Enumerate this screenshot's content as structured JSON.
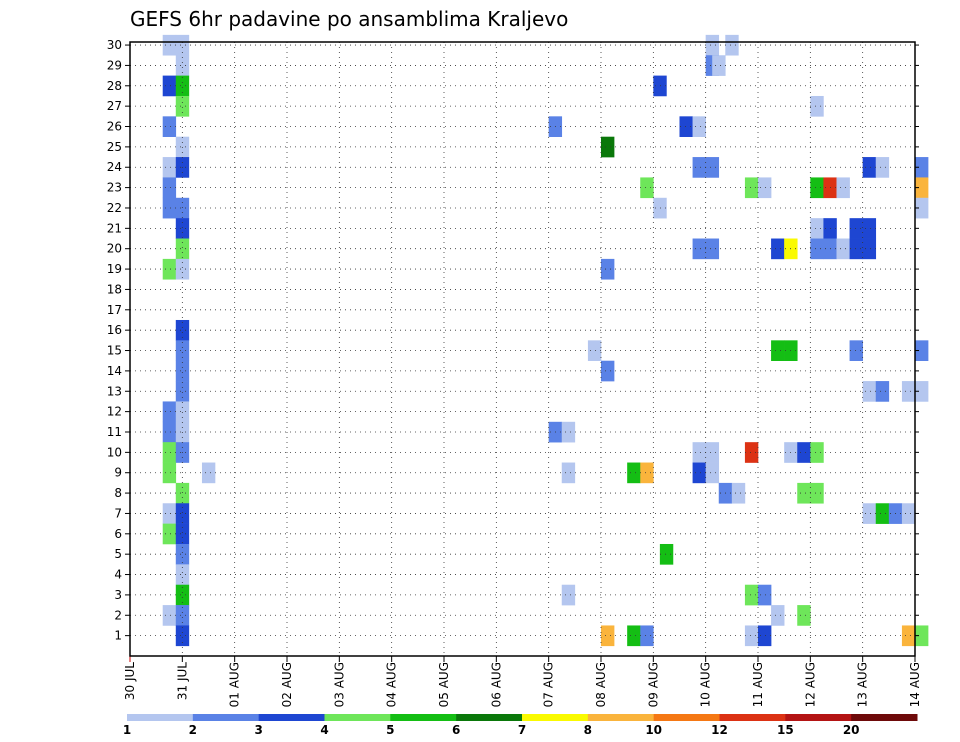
{
  "chart_data": {
    "type": "heatmap",
    "title": "GEFS 6hr padavine po ansamblima Kraljevo",
    "y_tick_labels": [
      "1",
      "2",
      "3",
      "4",
      "5",
      "6",
      "7",
      "8",
      "9",
      "10",
      "11",
      "12",
      "13",
      "14",
      "15",
      "16",
      "17",
      "18",
      "19",
      "20",
      "21",
      "22",
      "23",
      "24",
      "25",
      "26",
      "27",
      "28",
      "29",
      "30"
    ],
    "x_tick_labels": [
      "30 JUL",
      "31 JUL",
      "01 AUG",
      "02 AUG",
      "03 AUG",
      "04 AUG",
      "05 AUG",
      "06 AUG",
      "07 AUG",
      "08 AUG",
      "09 AUG",
      "10 AUG",
      "11 AUG",
      "12 AUG",
      "13 AUG",
      "14 AUG"
    ],
    "x_tick_days": [
      0,
      1,
      2,
      3,
      4,
      5,
      6,
      7,
      8,
      9,
      10,
      11,
      12,
      13,
      14,
      15
    ],
    "grid": true,
    "colorbar": {
      "position": "bottom",
      "labels": [
        "1",
        "2",
        "3",
        "4",
        "5",
        "6",
        "7",
        "8",
        "10",
        "12",
        "15",
        "20"
      ],
      "colors": [
        "#b4c6ef",
        "#5a82e6",
        "#1e46d2",
        "#6ee65a",
        "#14be14",
        "#0a780a",
        "#fafa00",
        "#fab43c",
        "#f57814",
        "#dc3214",
        "#b41414",
        "#6e0a0a"
      ]
    },
    "cells": [
      {
        "member": 30,
        "day": 0.625,
        "level": 1
      },
      {
        "member": 30,
        "day": 0.875,
        "level": 1
      },
      {
        "member": 30,
        "day": 11.0,
        "level": 1
      },
      {
        "member": 30,
        "day": 11.375,
        "level": 1
      },
      {
        "member": 29,
        "day": 0.875,
        "level": 1
      },
      {
        "member": 29,
        "day": 11.0,
        "level": 2
      },
      {
        "member": 29,
        "day": 11.125,
        "level": 1
      },
      {
        "member": 28,
        "day": 0.625,
        "level": 3
      },
      {
        "member": 28,
        "day": 0.875,
        "level": 5
      },
      {
        "member": 28,
        "day": 10.0,
        "level": 3
      },
      {
        "member": 27,
        "day": 0.875,
        "level": 4
      },
      {
        "member": 27,
        "day": 13.0,
        "level": 1
      },
      {
        "member": 26,
        "day": 0.625,
        "level": 2
      },
      {
        "member": 26,
        "day": 8.0,
        "level": 2
      },
      {
        "member": 26,
        "day": 10.5,
        "level": 3
      },
      {
        "member": 26,
        "day": 10.75,
        "level": 1
      },
      {
        "member": 25,
        "day": 0.875,
        "level": 1
      },
      {
        "member": 25,
        "day": 9.0,
        "level": 6
      },
      {
        "member": 24,
        "day": 0.625,
        "level": 1
      },
      {
        "member": 24,
        "day": 0.875,
        "level": 3
      },
      {
        "member": 24,
        "day": 10.75,
        "level": 2
      },
      {
        "member": 24,
        "day": 11.0,
        "level": 2
      },
      {
        "member": 24,
        "day": 14.0,
        "level": 3
      },
      {
        "member": 24,
        "day": 14.25,
        "level": 1
      },
      {
        "member": 24,
        "day": 15.0,
        "level": 2
      },
      {
        "member": 23,
        "day": 0.625,
        "level": 2
      },
      {
        "member": 23,
        "day": 9.75,
        "level": 4
      },
      {
        "member": 23,
        "day": 11.75,
        "level": 4
      },
      {
        "member": 23,
        "day": 12.0,
        "level": 1
      },
      {
        "member": 23,
        "day": 13.0,
        "level": 5
      },
      {
        "member": 23,
        "day": 13.25,
        "level": 10
      },
      {
        "member": 23,
        "day": 13.5,
        "level": 1
      },
      {
        "member": 23,
        "day": 15.0,
        "level": 8
      },
      {
        "member": 22,
        "day": 0.625,
        "level": 2
      },
      {
        "member": 22,
        "day": 0.875,
        "level": 2
      },
      {
        "member": 22,
        "day": 10.0,
        "level": 1
      },
      {
        "member": 22,
        "day": 15.0,
        "level": 1
      },
      {
        "member": 21,
        "day": 0.875,
        "level": 3
      },
      {
        "member": 21,
        "day": 13.0,
        "level": 1
      },
      {
        "member": 21,
        "day": 13.25,
        "level": 3
      },
      {
        "member": 21,
        "day": 13.75,
        "level": 3
      },
      {
        "member": 21,
        "day": 14.0,
        "level": 3
      },
      {
        "member": 20,
        "day": 0.875,
        "level": 4
      },
      {
        "member": 20,
        "day": 10.75,
        "level": 2
      },
      {
        "member": 20,
        "day": 11.0,
        "level": 2
      },
      {
        "member": 20,
        "day": 12.25,
        "level": 3
      },
      {
        "member": 20,
        "day": 12.5,
        "level": 7
      },
      {
        "member": 20,
        "day": 13.0,
        "level": 2
      },
      {
        "member": 20,
        "day": 13.25,
        "level": 2
      },
      {
        "member": 20,
        "day": 13.5,
        "level": 1
      },
      {
        "member": 20,
        "day": 13.75,
        "level": 3
      },
      {
        "member": 20,
        "day": 14.0,
        "level": 3
      },
      {
        "member": 19,
        "day": 0.625,
        "level": 4
      },
      {
        "member": 19,
        "day": 0.875,
        "level": 1
      },
      {
        "member": 19,
        "day": 9.0,
        "level": 2
      },
      {
        "member": 16,
        "day": 0.875,
        "level": 3
      },
      {
        "member": 15,
        "day": 0.875,
        "level": 2
      },
      {
        "member": 15,
        "day": 8.75,
        "level": 1
      },
      {
        "member": 15,
        "day": 12.25,
        "level": 5
      },
      {
        "member": 15,
        "day": 12.5,
        "level": 5
      },
      {
        "member": 15,
        "day": 13.75,
        "level": 2
      },
      {
        "member": 15,
        "day": 15.0,
        "level": 2
      },
      {
        "member": 14,
        "day": 0.875,
        "level": 2
      },
      {
        "member": 14,
        "day": 9.0,
        "level": 2
      },
      {
        "member": 13,
        "day": 0.875,
        "level": 2
      },
      {
        "member": 13,
        "day": 14.0,
        "level": 1
      },
      {
        "member": 13,
        "day": 14.25,
        "level": 2
      },
      {
        "member": 13,
        "day": 14.75,
        "level": 1
      },
      {
        "member": 13,
        "day": 15.0,
        "level": 1
      },
      {
        "member": 12,
        "day": 0.625,
        "level": 2
      },
      {
        "member": 12,
        "day": 0.875,
        "level": 1
      },
      {
        "member": 11,
        "day": 0.625,
        "level": 2
      },
      {
        "member": 11,
        "day": 0.875,
        "level": 1
      },
      {
        "member": 11,
        "day": 8.0,
        "level": 2
      },
      {
        "member": 11,
        "day": 8.25,
        "level": 1
      },
      {
        "member": 10,
        "day": 0.625,
        "level": 4
      },
      {
        "member": 10,
        "day": 0.875,
        "level": 2
      },
      {
        "member": 10,
        "day": 10.75,
        "level": 1
      },
      {
        "member": 10,
        "day": 11.0,
        "level": 1
      },
      {
        "member": 10,
        "day": 11.75,
        "level": 10
      },
      {
        "member": 10,
        "day": 12.5,
        "level": 1
      },
      {
        "member": 10,
        "day": 12.75,
        "level": 3
      },
      {
        "member": 10,
        "day": 13.0,
        "level": 4
      },
      {
        "member": 9,
        "day": 0.625,
        "level": 4
      },
      {
        "member": 9,
        "day": 1.375,
        "level": 1
      },
      {
        "member": 9,
        "day": 8.25,
        "level": 1
      },
      {
        "member": 9,
        "day": 9.5,
        "level": 5
      },
      {
        "member": 9,
        "day": 9.75,
        "level": 8
      },
      {
        "member": 9,
        "day": 10.75,
        "level": 3
      },
      {
        "member": 9,
        "day": 11.0,
        "level": 1
      },
      {
        "member": 8,
        "day": 0.875,
        "level": 4
      },
      {
        "member": 8,
        "day": 11.25,
        "level": 2
      },
      {
        "member": 8,
        "day": 11.5,
        "level": 1
      },
      {
        "member": 8,
        "day": 12.75,
        "level": 4
      },
      {
        "member": 8,
        "day": 13.0,
        "level": 4
      },
      {
        "member": 7,
        "day": 0.625,
        "level": 1
      },
      {
        "member": 7,
        "day": 0.875,
        "level": 3
      },
      {
        "member": 7,
        "day": 14.0,
        "level": 1
      },
      {
        "member": 7,
        "day": 14.25,
        "level": 5
      },
      {
        "member": 7,
        "day": 14.5,
        "level": 2
      },
      {
        "member": 7,
        "day": 14.75,
        "level": 1
      },
      {
        "member": 6,
        "day": 0.625,
        "level": 4
      },
      {
        "member": 6,
        "day": 0.875,
        "level": 3
      },
      {
        "member": 5,
        "day": 0.875,
        "level": 2
      },
      {
        "member": 5,
        "day": 10.125,
        "level": 5
      },
      {
        "member": 4,
        "day": 0.875,
        "level": 1
      },
      {
        "member": 3,
        "day": 0.875,
        "level": 5
      },
      {
        "member": 3,
        "day": 8.25,
        "level": 1
      },
      {
        "member": 3,
        "day": 11.75,
        "level": 4
      },
      {
        "member": 3,
        "day": 12.0,
        "level": 2
      },
      {
        "member": 2,
        "day": 0.625,
        "level": 1
      },
      {
        "member": 2,
        "day": 0.875,
        "level": 2
      },
      {
        "member": 2,
        "day": 12.25,
        "level": 1
      },
      {
        "member": 2,
        "day": 12.75,
        "level": 4
      },
      {
        "member": 1,
        "day": 0.875,
        "level": 3
      },
      {
        "member": 1,
        "day": 9.0,
        "level": 8
      },
      {
        "member": 1,
        "day": 9.5,
        "level": 5
      },
      {
        "member": 1,
        "day": 9.75,
        "level": 2
      },
      {
        "member": 1,
        "day": 11.75,
        "level": 1
      },
      {
        "member": 1,
        "day": 12.0,
        "level": 3
      },
      {
        "member": 1,
        "day": 14.75,
        "level": 8
      },
      {
        "member": 1,
        "day": 15.0,
        "level": 4
      }
    ]
  }
}
